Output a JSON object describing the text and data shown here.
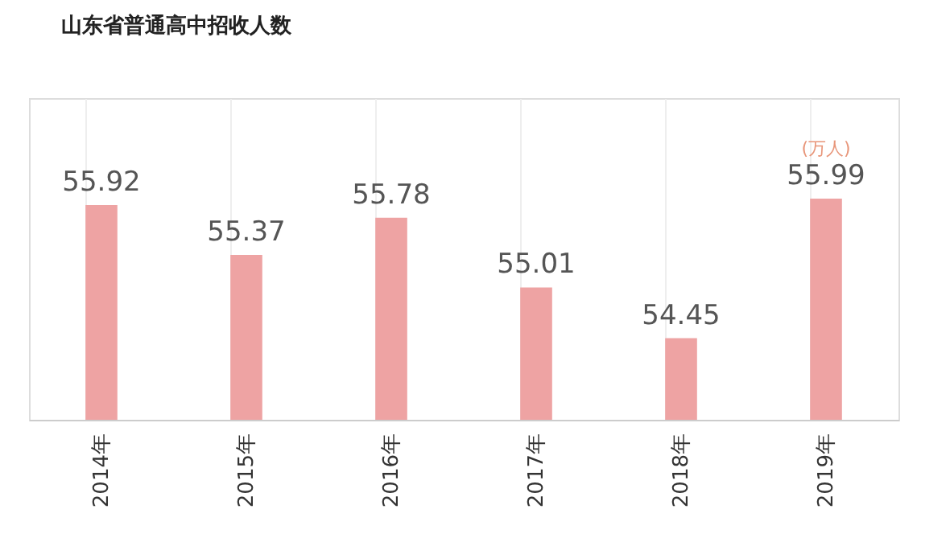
{
  "chart_data": {
    "type": "bar",
    "title": "山东省普通高中招收人数",
    "categories": [
      "2014年",
      "2015年",
      "2016年",
      "2017年",
      "2018年",
      "2019年"
    ],
    "values": [
      55.92,
      55.37,
      55.78,
      55.01,
      54.45,
      55.99
    ],
    "color": "#eea3a3",
    "ylim": [
      53.55,
      57.1
    ],
    "data_labels": true,
    "tick_labels": "x",
    "grid": "x",
    "annotations": [
      "(万人)"
    ]
  }
}
